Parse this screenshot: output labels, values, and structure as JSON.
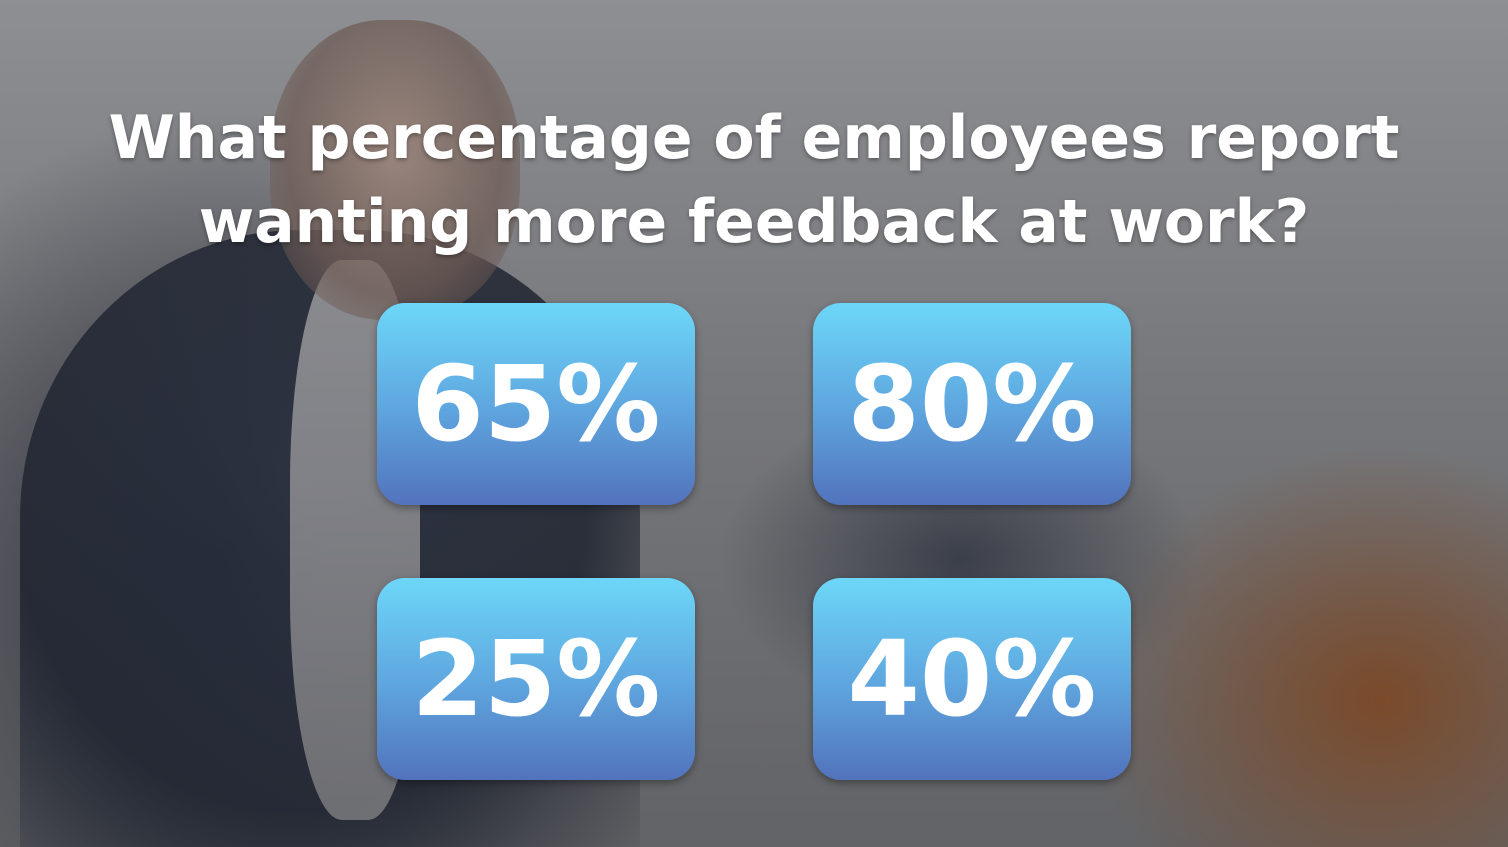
{
  "question": {
    "lines": [
      "What percentage of employees report",
      "wanting more feedback at work?"
    ]
  },
  "options": [
    "65%",
    "80%",
    "25%",
    "40%"
  ]
}
